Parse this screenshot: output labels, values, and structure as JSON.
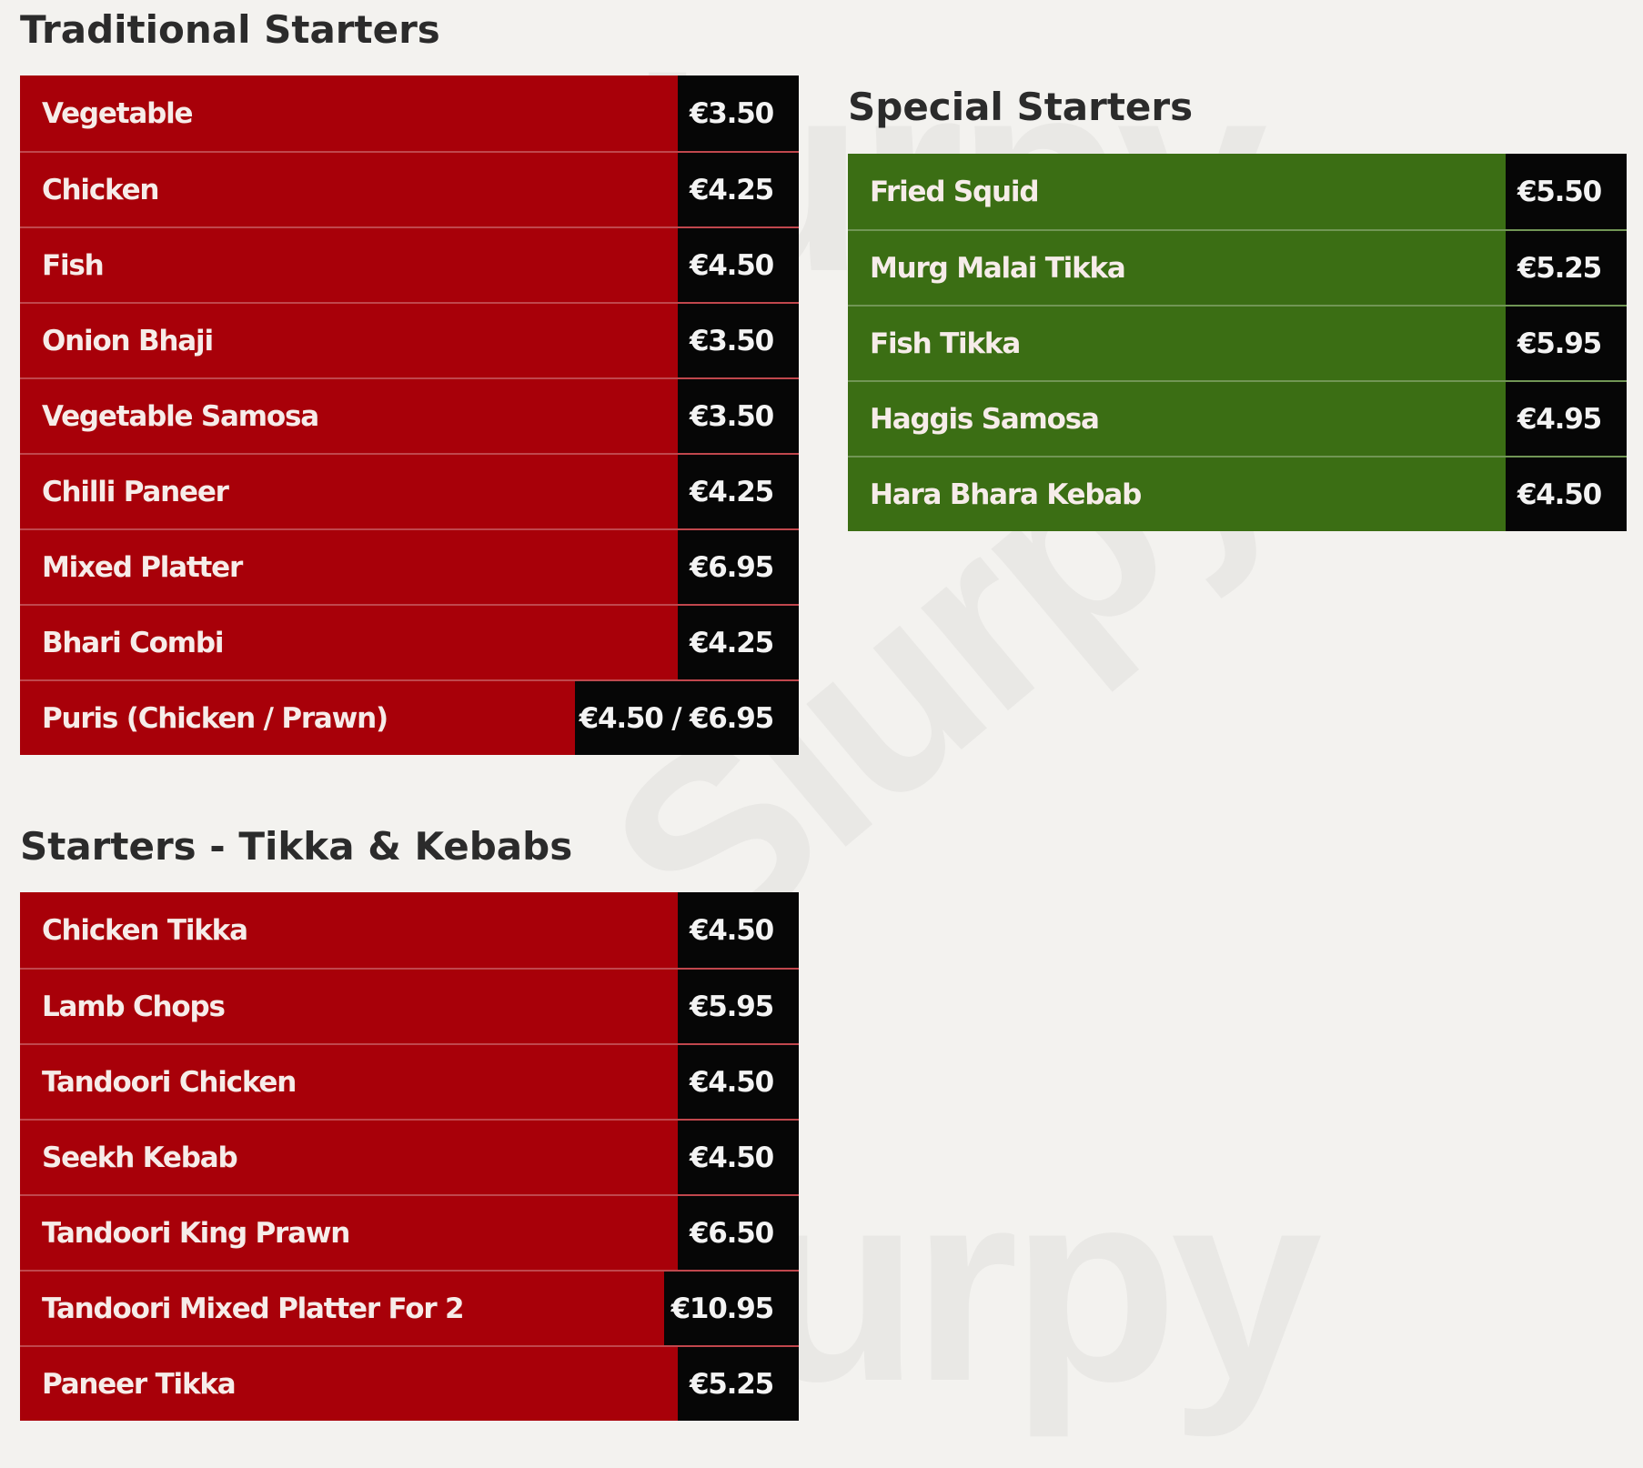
{
  "watermark": "Slurpy",
  "sections": {
    "traditional": {
      "title": "Traditional Starters",
      "items": [
        {
          "name": "Vegetable",
          "price": "€3.50"
        },
        {
          "name": "Chicken",
          "price": "€4.25"
        },
        {
          "name": "Fish",
          "price": "€4.50"
        },
        {
          "name": "Onion Bhaji",
          "price": "€3.50"
        },
        {
          "name": "Vegetable Samosa",
          "price": "€3.50"
        },
        {
          "name": "Chilli Paneer",
          "price": "€4.25"
        },
        {
          "name": "Mixed Platter",
          "price": "€6.95"
        },
        {
          "name": "Bhari Combi",
          "price": "€4.25"
        },
        {
          "name": "Puris (Chicken / Prawn)",
          "price": "€4.50 / €6.95"
        }
      ]
    },
    "special": {
      "title": "Special Starters",
      "items": [
        {
          "name": "Fried Squid",
          "price": "€5.50"
        },
        {
          "name": "Murg Malai Tikka",
          "price": "€5.25"
        },
        {
          "name": "Fish Tikka",
          "price": "€5.95"
        },
        {
          "name": "Haggis Samosa",
          "price": "€4.95"
        },
        {
          "name": "Hara Bhara Kebab",
          "price": "€4.50"
        }
      ]
    },
    "tikka": {
      "title": "Starters - Tikka & Kebabs",
      "items": [
        {
          "name": "Chicken Tikka",
          "price": "€4.50"
        },
        {
          "name": "Lamb Chops",
          "price": "€5.95"
        },
        {
          "name": "Tandoori Chicken",
          "price": "€4.50"
        },
        {
          "name": "Seekh Kebab",
          "price": "€4.50"
        },
        {
          "name": "Tandoori King Prawn",
          "price": "€6.50"
        },
        {
          "name": "Tandoori Mixed Platter For 2",
          "price": "€10.95"
        },
        {
          "name": "Paneer Tikka",
          "price": "€5.25"
        }
      ]
    }
  }
}
